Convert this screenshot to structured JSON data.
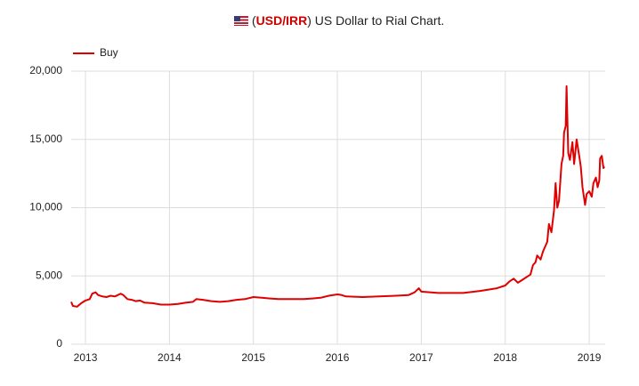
{
  "chart_data": {
    "type": "line",
    "title_prefix": "(",
    "title_code": "USD/IRR",
    "title_suffix": ") US Dollar to Rial Chart.",
    "xlim": [
      2012.83,
      2019.19
    ],
    "xticks": [
      2013,
      2014,
      2015,
      2016,
      2017,
      2018,
      2019
    ],
    "ylim": [
      0,
      20000
    ],
    "yticks": [
      0,
      {
        "value": 5000,
        "label": "5,000"
      },
      {
        "value": 10000,
        "label": "10,000"
      },
      {
        "value": 15000,
        "label": "15,000"
      },
      {
        "value": 20000,
        "label": "20,000"
      }
    ],
    "grid": true,
    "legend": "top-left",
    "x": [
      2012.83,
      2012.85,
      2012.9,
      2012.95,
      2013.0,
      2013.05,
      2013.08,
      2013.12,
      2013.15,
      2013.2,
      2013.25,
      2013.3,
      2013.35,
      2013.42,
      2013.45,
      2013.5,
      2013.55,
      2013.6,
      2013.65,
      2013.7,
      2013.8,
      2013.9,
      2014.0,
      2014.1,
      2014.2,
      2014.28,
      2014.32,
      2014.4,
      2014.5,
      2014.6,
      2014.7,
      2014.8,
      2014.9,
      2015.0,
      2015.1,
      2015.2,
      2015.3,
      2015.4,
      2015.5,
      2015.6,
      2015.7,
      2015.8,
      2015.9,
      2016.0,
      2016.05,
      2016.1,
      2016.3,
      2016.5,
      2016.7,
      2016.85,
      2016.92,
      2016.97,
      2017.0,
      2017.2,
      2017.5,
      2017.7,
      2017.9,
      2018.0,
      2018.05,
      2018.1,
      2018.15,
      2018.2,
      2018.3,
      2018.33,
      2018.36,
      2018.38,
      2018.42,
      2018.45,
      2018.5,
      2018.52,
      2018.55,
      2018.58,
      2018.6,
      2018.62,
      2018.64,
      2018.67,
      2018.69,
      2018.7,
      2018.72,
      2018.73,
      2018.75,
      2018.77,
      2018.8,
      2018.82,
      2018.85,
      2018.88,
      2018.9,
      2018.92,
      2018.95,
      2018.97,
      2019.0,
      2019.03,
      2019.05,
      2019.08,
      2019.1,
      2019.12,
      2019.13,
      2019.15,
      2019.17,
      2019.18
    ],
    "series": [
      {
        "name": "Buy",
        "color": "#e00000",
        "values": [
          3100,
          2800,
          2750,
          3000,
          3200,
          3300,
          3700,
          3800,
          3600,
          3500,
          3450,
          3550,
          3500,
          3700,
          3600,
          3300,
          3250,
          3150,
          3200,
          3050,
          3000,
          2900,
          2900,
          2950,
          3050,
          3100,
          3300,
          3250,
          3150,
          3100,
          3150,
          3250,
          3300,
          3450,
          3400,
          3350,
          3300,
          3300,
          3300,
          3300,
          3350,
          3400,
          3550,
          3650,
          3600,
          3500,
          3450,
          3500,
          3550,
          3600,
          3800,
          4100,
          3850,
          3750,
          3750,
          3900,
          4100,
          4300,
          4600,
          4800,
          4500,
          4700,
          5100,
          5800,
          6000,
          6500,
          6200,
          6800,
          7500,
          8800,
          8200,
          9800,
          11800,
          10000,
          10500,
          13200,
          13800,
          15500,
          16000,
          18900,
          14000,
          13500,
          14800,
          13200,
          15000,
          13800,
          13000,
          11500,
          10200,
          11000,
          11200,
          10800,
          11800,
          12200,
          11500,
          12000,
          13600,
          13800,
          12900,
          13000
        ]
      }
    ]
  }
}
